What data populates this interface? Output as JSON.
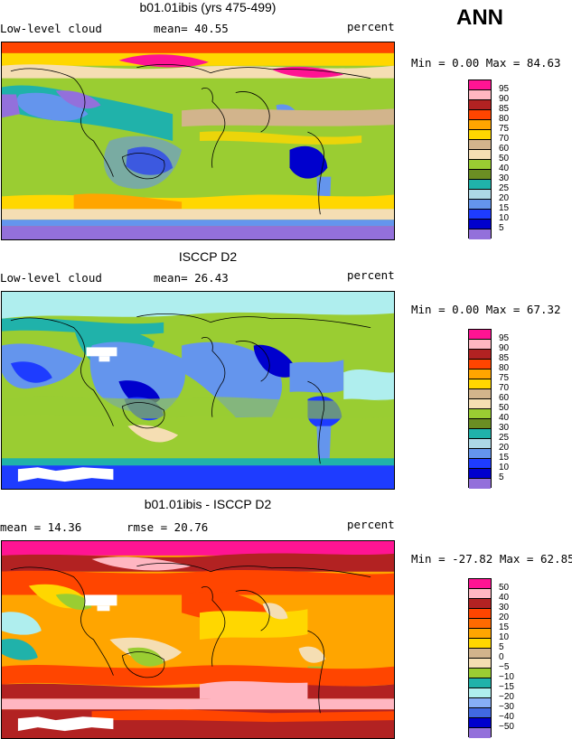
{
  "ann_label": "ANN",
  "panels": [
    {
      "title": "b01.01ibis (yrs 475-499)",
      "left": "Low-level cloud",
      "mid": "mean=  40.55",
      "right": "percent",
      "minmax": "Min =   0.00 Max =  84.63"
    },
    {
      "title": "ISCCP D2",
      "left": "Low-level cloud",
      "mid": "mean=  26.43",
      "right": "percent",
      "minmax": "Min =   0.00 Max =  67.32"
    },
    {
      "title": "b01.01ibis - ISCCP D2",
      "left": "mean =  14.36",
      "mid": "rmse =  20.76",
      "right": "percent",
      "minmax": "Min = -27.82 Max =  62.85"
    }
  ],
  "colorbar_abs": {
    "labels": [
      "95",
      "90",
      "85",
      "80",
      "75",
      "70",
      "60",
      "50",
      "40",
      "30",
      "25",
      "20",
      "15",
      "10",
      "5"
    ],
    "colors": [
      "#ff1493",
      "#ffb6c1",
      "#b22222",
      "#ff4500",
      "#ffa500",
      "#ffd700",
      "#d2b48c",
      "#f5deb3",
      "#9acd32",
      "#6b8e23",
      "#20b2aa",
      "#add8e6",
      "#6495ed",
      "#1e3cff",
      "#0000cd",
      "#9370db"
    ]
  },
  "colorbar_diff": {
    "labels": [
      "50",
      "40",
      "30",
      "20",
      "15",
      "10",
      "5",
      "0",
      "−5",
      "−10",
      "−15",
      "−20",
      "−30",
      "−40",
      "−50"
    ],
    "colors": [
      "#ff1493",
      "#ffb6c1",
      "#b22222",
      "#ff4500",
      "#ff6a00",
      "#ffa500",
      "#ffd700",
      "#d2b48c",
      "#f5deb3",
      "#9acd32",
      "#20b2aa",
      "#afeeee",
      "#87aef5",
      "#4169e1",
      "#0000cd",
      "#9370db"
    ]
  }
}
